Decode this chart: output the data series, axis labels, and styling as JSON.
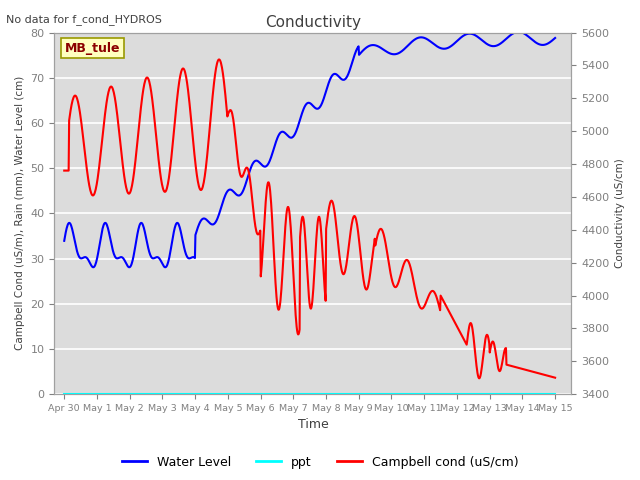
{
  "title": "Conductivity",
  "top_left_text": "No data for f_cond_HYDROS",
  "xlabel": "Time",
  "ylabel_left": "Campbell Cond (uS/m), Rain (mm), Water Level (cm)",
  "ylabel_right": "Conductivity (uS/cm)",
  "ylim_left": [
    0,
    80
  ],
  "ylim_right": [
    3400,
    5600
  ],
  "x_ticks_labels": [
    "Apr 30",
    "May 1",
    "May 2",
    "May 3",
    "May 4",
    "May 5",
    "May 6",
    "May 7",
    "May 8",
    "May 9",
    "May 10",
    "May 11",
    "May 12",
    "May 13",
    "May 14",
    "May 15"
  ],
  "x_ticks_pos": [
    0,
    1,
    2,
    3,
    4,
    5,
    6,
    7,
    8,
    9,
    10,
    11,
    12,
    13,
    14,
    15
  ],
  "legend_entries": [
    "Water Level",
    "ppt",
    "Campbell cond (uS/cm)"
  ],
  "site_label": "MB_tule",
  "site_label_color": "#8B0000",
  "site_label_bg": "#FFFFC0",
  "background_color": "#DCDCDC",
  "grid_color": "#FFFFFF",
  "title_color": "#404040",
  "axis_label_color": "#404040",
  "tick_label_color": "#808080"
}
